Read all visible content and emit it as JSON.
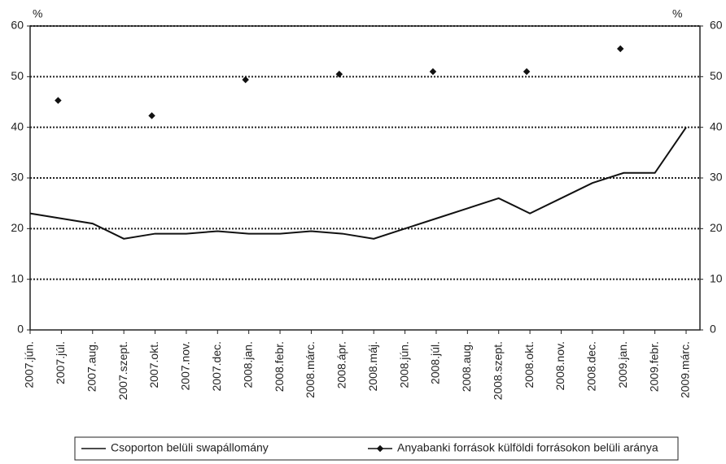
{
  "chart_data": {
    "type": "line",
    "y_label": "%",
    "y2_label": "%",
    "categories": [
      "2007.jún.",
      "2007.júl.",
      "2007.aug.",
      "2007.szept.",
      "2007.okt.",
      "2007.nov.",
      "2007.dec.",
      "2008.jan.",
      "2008.febr.",
      "2008.márc.",
      "2008.ápr.",
      "2008.máj.",
      "2008.jún.",
      "2008.júl.",
      "2008.aug.",
      "2008.szept.",
      "2008.okt.",
      "2008.nov.",
      "2008.dec.",
      "2009.jan.",
      "2009.febr.",
      "2009.márc."
    ],
    "series": [
      {
        "name": "Csoporton belüli swapállomány",
        "color": "#111111",
        "style": "line",
        "values": [
          23,
          22,
          21,
          18,
          19,
          19,
          19.5,
          19,
          19,
          19.5,
          19,
          18,
          20,
          22,
          24,
          26,
          23,
          26,
          29,
          31,
          31,
          40
        ]
      },
      {
        "name": "Anyabanki források külföldi forrásokon belüli aránya",
        "color": "#111111",
        "style": "marker",
        "values": [
          null,
          45.3,
          null,
          null,
          42.3,
          null,
          null,
          49.4,
          null,
          null,
          50.5,
          null,
          null,
          51,
          null,
          null,
          51,
          null,
          null,
          55.5,
          null,
          null
        ]
      }
    ],
    "ylim": [
      0,
      60
    ],
    "yticks": [
      0,
      10,
      20,
      30,
      40,
      50,
      60
    ],
    "y2lim": [
      0,
      60
    ],
    "y2ticks": [
      0,
      10,
      20,
      30,
      40,
      50,
      60
    ],
    "grid": true,
    "legend": "bottom"
  }
}
